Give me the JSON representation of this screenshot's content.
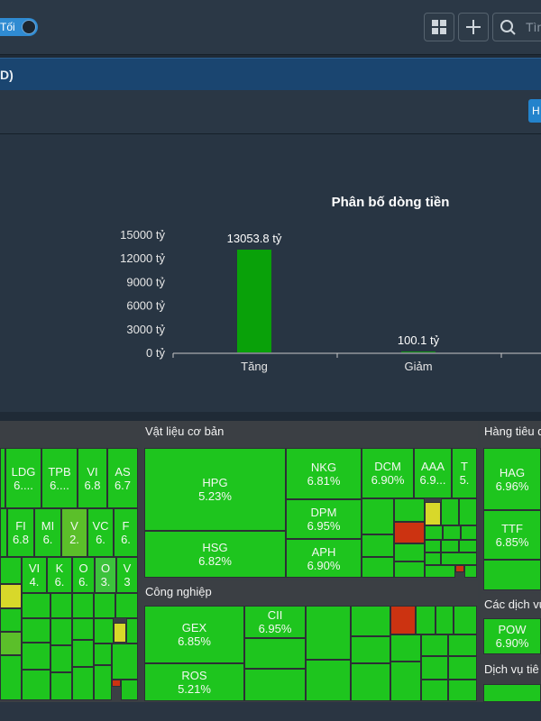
{
  "topbar": {
    "theme_toggle_label": "Tối",
    "search_placeholder": "Tìm"
  },
  "panel": {
    "title": "D)",
    "subbar_button": "H"
  },
  "chart_data": {
    "type": "bar",
    "title": "Phân bố dòng tiền",
    "categories": [
      "Tăng",
      "Giảm"
    ],
    "values": [
      13053.8,
      100.1
    ],
    "value_labels": [
      "13053.8 tỷ",
      "100.1 tỷ"
    ],
    "ylim": [
      0,
      15000
    ],
    "yticks": [
      "15000 tỷ",
      "12000 tỷ",
      "9000 tỷ",
      "6000 tỷ",
      "3000 tỷ",
      "0 tỷ"
    ],
    "colors": [
      "#09a109",
      "#09a109"
    ],
    "grid": false
  },
  "heatmap": {
    "sectors": {
      "vlcb": "Vật liệu cơ bản",
      "cn": "Công nghiệp",
      "htd": "Hàng tiêu d",
      "cdv": "Các dịch vụ",
      "dvt": "Dịch vụ tiê"
    },
    "bank": [
      {
        "sym": "LDG",
        "pct": "6...."
      },
      {
        "sym": "TPB",
        "pct": "6...."
      },
      {
        "sym": "VI",
        "pct": "6.8"
      },
      {
        "sym": "AS",
        "pct": "6.7"
      },
      {
        "sym": "FI",
        "pct": "6.8"
      },
      {
        "sym": "MI",
        "pct": "6."
      },
      {
        "sym": "V",
        "pct": "2."
      },
      {
        "sym": "VC",
        "pct": "6."
      },
      {
        "sym": "F",
        "pct": "6."
      },
      {
        "sym": "VI",
        "pct": "4."
      },
      {
        "sym": "K",
        "pct": "6."
      },
      {
        "sym": "O",
        "pct": "6."
      },
      {
        "sym": "O",
        "pct": "3."
      },
      {
        "sym": "V",
        "pct": "3"
      }
    ],
    "vlcb": [
      {
        "sym": "HPG",
        "pct": "5.23%"
      },
      {
        "sym": "HSG",
        "pct": "6.82%"
      },
      {
        "sym": "NKG",
        "pct": "6.81%"
      },
      {
        "sym": "DPM",
        "pct": "6.95%"
      },
      {
        "sym": "APH",
        "pct": "6.90%"
      },
      {
        "sym": "DCM",
        "pct": "6.90%"
      },
      {
        "sym": "AAA",
        "pct": "6.9..."
      },
      {
        "sym": "T",
        "pct": "5."
      }
    ],
    "cn": [
      {
        "sym": "GEX",
        "pct": "6.85%"
      },
      {
        "sym": "CII",
        "pct": "6.95%"
      },
      {
        "sym": "ROS",
        "pct": "5.21%"
      }
    ],
    "htd": [
      {
        "sym": "HAG",
        "pct": "6.96%"
      },
      {
        "sym": "TTF",
        "pct": "6.85%"
      }
    ],
    "cdv": [
      {
        "sym": "POW",
        "pct": "6.90%"
      }
    ]
  }
}
